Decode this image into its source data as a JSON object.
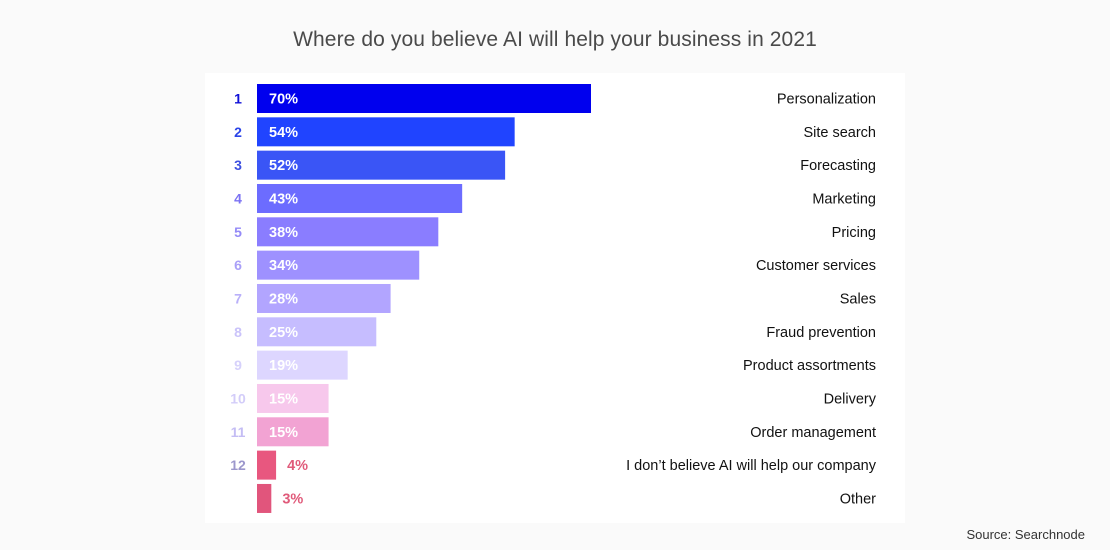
{
  "title": "Where do you believe AI will help your business in 2021",
  "source": "Source: Searchnode",
  "chart_data": {
    "type": "bar",
    "orientation": "horizontal",
    "title": "Where do you believe AI will help your business in 2021",
    "xlim": [
      0,
      100
    ],
    "grid": false,
    "ranks": [
      "1",
      "2",
      "3",
      "4",
      "5",
      "6",
      "7",
      "8",
      "9",
      "10",
      "11",
      "12",
      ""
    ],
    "categories": [
      "Personalization",
      "Site search",
      "Forecasting",
      "Marketing",
      "Pricing",
      "Customer services",
      "Sales",
      "Fraud prevention",
      "Product assortments",
      "Delivery",
      "Order management",
      "I don’t believe AI will help our company",
      "Other"
    ],
    "values": [
      70,
      54,
      52,
      43,
      38,
      34,
      28,
      25,
      19,
      15,
      15,
      4,
      3
    ],
    "value_labels": [
      "70%",
      "54%",
      "52%",
      "43%",
      "38%",
      "34%",
      "28%",
      "25%",
      "19%",
      "15%",
      "15%",
      "4%",
      "3%"
    ],
    "bar_colors": [
      "#0000ee",
      "#2044ff",
      "#3a55f6",
      "#6c6cff",
      "#8a7dff",
      "#9e91ff",
      "#b2a5ff",
      "#c6bdff",
      "#ddd6ff",
      "#f7c8ec",
      "#f2a3d3",
      "#e8577f",
      "#e1557c"
    ],
    "rank_colors": [
      "#1010d8",
      "#2b44e8",
      "#3d4fe0",
      "#7b72f3",
      "#948af7",
      "#a99ff8",
      "#b9b0f9",
      "#cac3fa",
      "#d6d1fb",
      "#d3cdf9",
      "#c4bdf4",
      "#9c97cc",
      "#9c97cc"
    ],
    "label_colors": [
      "#ffffff",
      "#ffffff",
      "#ffffff",
      "#ffffff",
      "#ffffff",
      "#ffffff",
      "#ffffff",
      "#ffffff",
      "#ffffff",
      "#ffffff",
      "#ffffff",
      "#e05a7a",
      "#e05a7a"
    ]
  }
}
